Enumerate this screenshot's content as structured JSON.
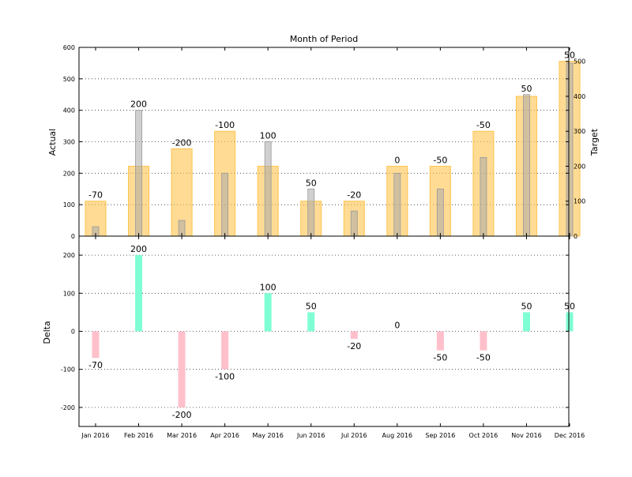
{
  "chart_data": {
    "type": "bar",
    "title": "Month of Period",
    "categories": [
      "Jan 2016",
      "Feb 2016",
      "Mar 2016",
      "Apr 2016",
      "May 2016",
      "Jun 2016",
      "Jul 2016",
      "Aug 2016",
      "Sep 2016",
      "Oct 2016",
      "Nov 2016",
      "Dec 2016"
    ],
    "top_panel": {
      "ylabel_left": "Actual",
      "ylabel_right": "Target",
      "ylim_left": [
        0,
        600
      ],
      "ylim_right": [
        0,
        540
      ],
      "yticks_left": [
        0,
        100,
        200,
        300,
        400,
        500,
        600
      ],
      "yticks_right": [
        0,
        100,
        200,
        300,
        400,
        500
      ],
      "actual": [
        30,
        400,
        50,
        200,
        300,
        150,
        80,
        200,
        150,
        250,
        450,
        550
      ],
      "target": [
        100,
        200,
        250,
        300,
        200,
        100,
        100,
        200,
        200,
        300,
        400,
        500
      ],
      "data_labels": [
        "-70",
        "200",
        "-200",
        "-100",
        "100",
        "50",
        "-20",
        "0",
        "-50",
        "-50",
        "50",
        "50"
      ],
      "actual_color": "#aaaaaa",
      "target_color": "#ffc34d"
    },
    "bottom_panel": {
      "ylabel": "Delta",
      "ylim": [
        -250,
        250
      ],
      "yticks": [
        -200,
        -100,
        0,
        100,
        200
      ],
      "delta": [
        -70,
        200,
        -200,
        -100,
        100,
        50,
        -20,
        0,
        -50,
        -50,
        50,
        50
      ],
      "data_labels": [
        "-70",
        "200",
        "-200",
        "-100",
        "100",
        "50",
        "-20",
        "0",
        "-50",
        "-50",
        "50",
        "50"
      ],
      "positive_color": "#7fffd4",
      "negative_color": "#ffc0cb"
    },
    "grid": "horizontal-dotted"
  }
}
